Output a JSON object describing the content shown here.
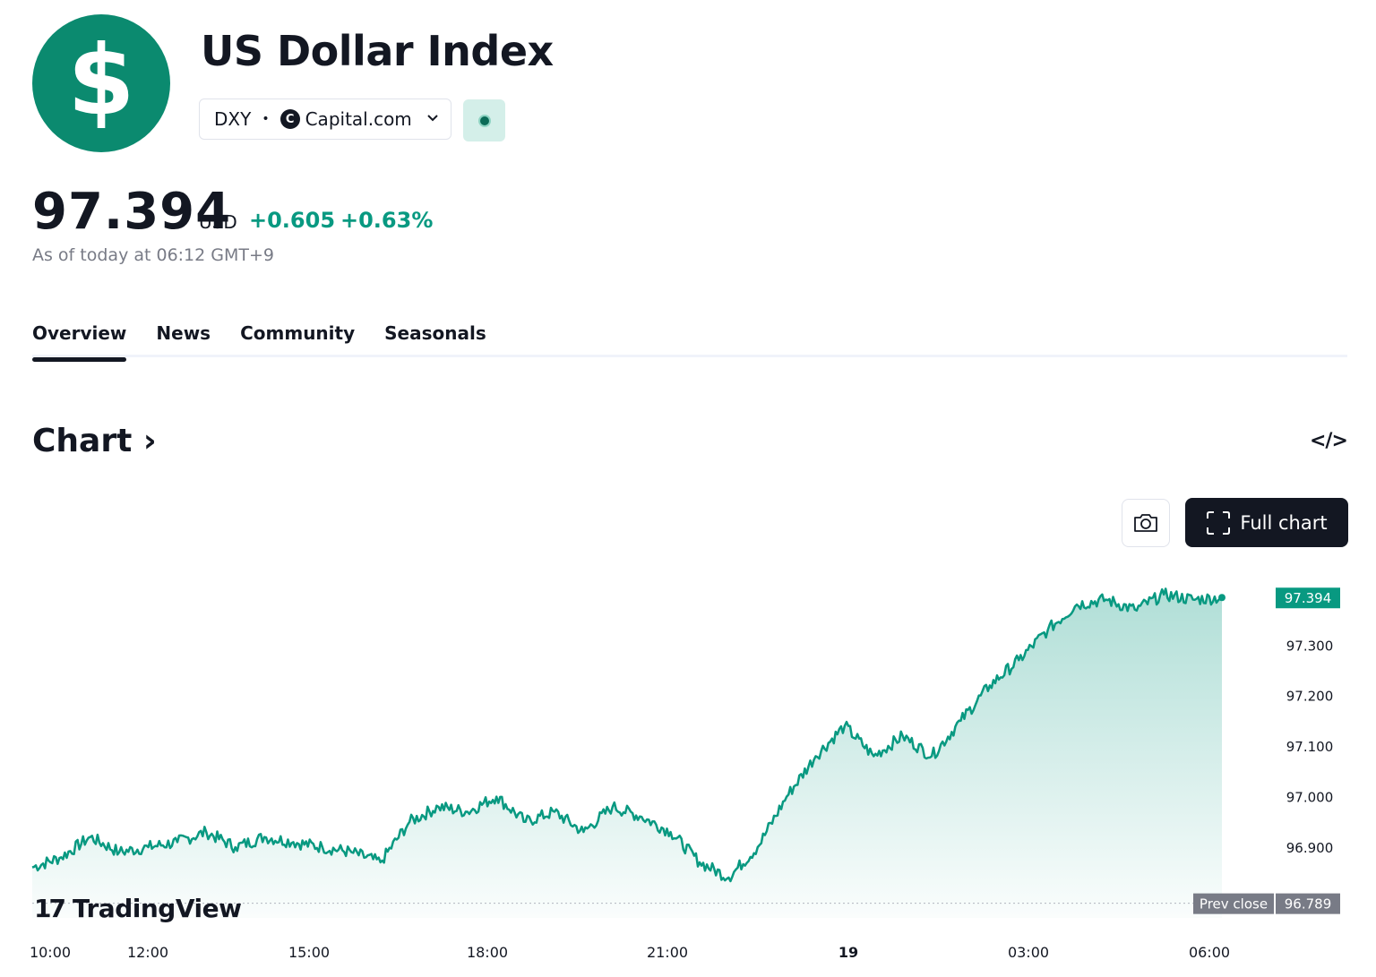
{
  "header": {
    "logo_symbol": "$",
    "title": "US Dollar Index",
    "ticker": "DXY",
    "exchange": "Capital.com",
    "exchange_icon": "C",
    "market_status_color": "#0b6b57"
  },
  "quote": {
    "price": "97.394",
    "currency": "USD",
    "change": "+0.605",
    "change_percent": "+0.63%",
    "as_of": "As of today at 06:12 GMT+9"
  },
  "tabs": [
    {
      "label": "Overview",
      "active": true
    },
    {
      "label": "News",
      "active": false
    },
    {
      "label": "Community",
      "active": false
    },
    {
      "label": "Seasonals",
      "active": false
    }
  ],
  "section": {
    "chart_heading": "Chart",
    "embed_icon": "</>",
    "full_chart_label": "Full chart",
    "watermark": "TradingView"
  },
  "colors": {
    "accent": "#089981",
    "line": "#089981"
  },
  "chart_data": {
    "type": "area",
    "x_ticks": [
      "10:00",
      "12:00",
      "15:00",
      "18:00",
      "21:00",
      "19",
      "03:00",
      "06:00"
    ],
    "y_ticks": [
      "97.300",
      "97.200",
      "97.100",
      "97.000",
      "96.900"
    ],
    "ylim": [
      96.76,
      97.46
    ],
    "last_price": "97.394",
    "prev_close_label": "Prev close",
    "prev_close_value": "96.789",
    "x": [
      "10:00",
      "10:30",
      "11:00",
      "11:30",
      "12:00",
      "12:30",
      "13:00",
      "13:30",
      "14:00",
      "14:30",
      "15:00",
      "15:30",
      "16:00",
      "16:30",
      "17:00",
      "17:30",
      "18:00",
      "18:30",
      "19:00",
      "19:30",
      "20:00",
      "20:30",
      "21:00",
      "21:30",
      "22:00",
      "22:30",
      "23:00",
      "23:30",
      "00:00",
      "00:30",
      "01:00",
      "01:30",
      "02:00",
      "02:30",
      "03:00",
      "03:30",
      "04:00",
      "04:30",
      "05:00",
      "05:30",
      "06:00",
      "06:12"
    ],
    "values": [
      96.86,
      96.88,
      96.92,
      96.89,
      96.9,
      96.91,
      96.93,
      96.9,
      96.92,
      96.91,
      96.9,
      96.89,
      96.87,
      96.95,
      96.98,
      96.97,
      97.0,
      96.95,
      96.97,
      96.93,
      96.98,
      96.96,
      96.93,
      96.87,
      96.84,
      96.9,
      97.0,
      97.08,
      97.14,
      97.08,
      97.12,
      97.08,
      97.15,
      97.22,
      97.27,
      97.33,
      97.38,
      97.39,
      97.37,
      97.4,
      97.39,
      97.394
    ]
  }
}
